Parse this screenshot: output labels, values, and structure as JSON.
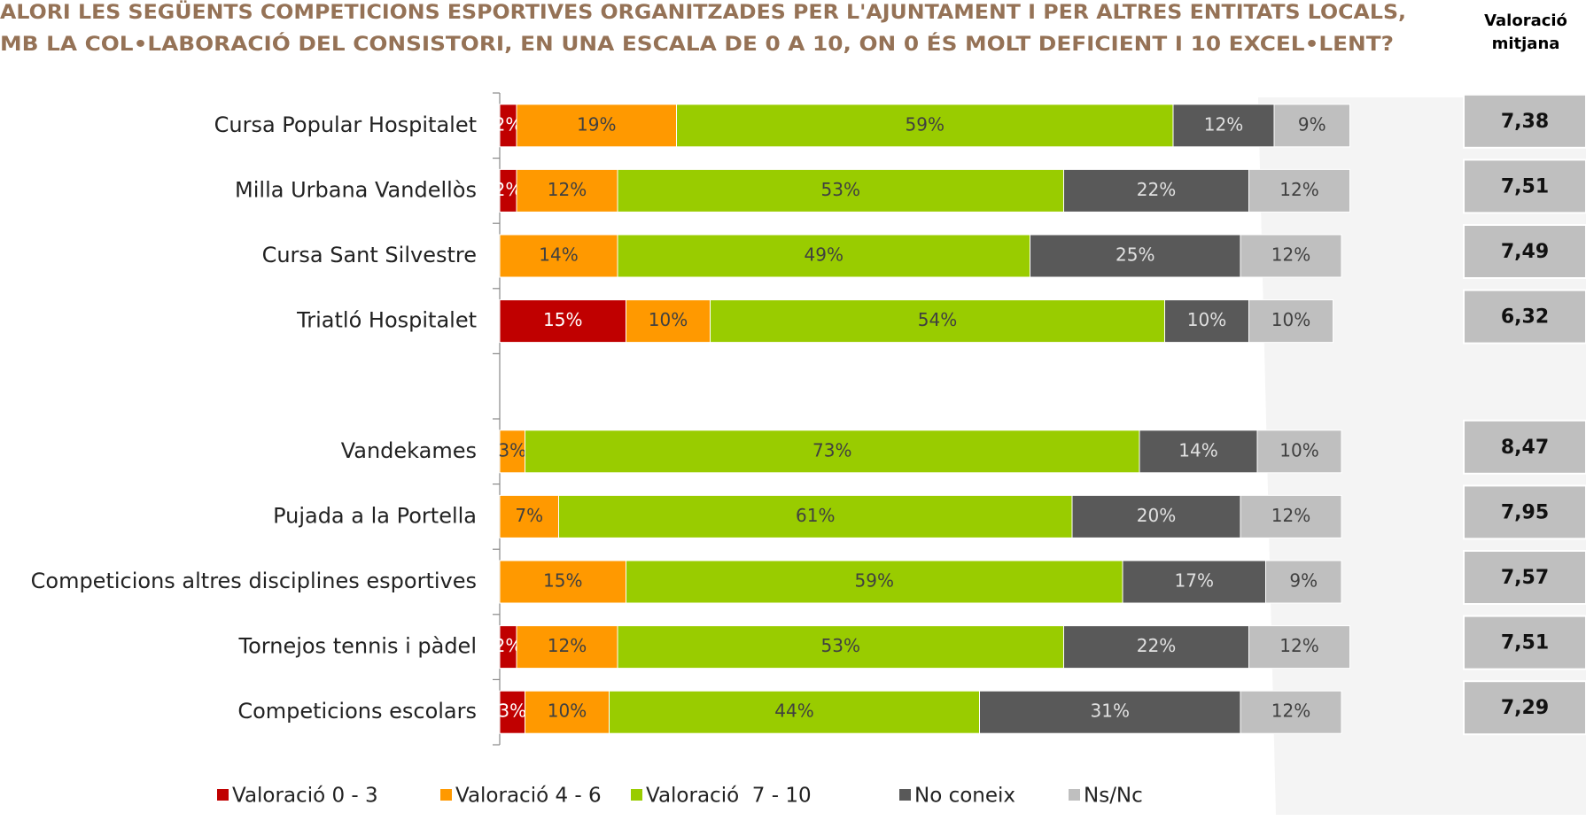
{
  "chart_data": {
    "type": "stacked_barh",
    "title": [
      "ALORI LES SEGÜENTS COMPETICIONS ESPORTIVES ORGANITZADES PER L'AJUNTAMENT I PER ALTRES ENTITATS LOCALS,",
      "MB LA COL•LABORACIÓ DEL CONSISTORI, EN UNA ESCALA DE 0 A 10, ON 0 ÉS MOLT DEFICIENT I 10 EXCEL•LENT?"
    ],
    "categories": [
      "Cursa Popular Hospitalet",
      "Milla Urbana Vandellòs",
      "Cursa Sant Silvestre",
      "Triatló Hospitalet",
      null,
      "Vandekames",
      "Pujada a la Portella",
      "Competicions altres disciplines esportives",
      "Tornejos tennis i pàdel",
      "Competicions escolars"
    ],
    "xlim": [
      0,
      100
    ],
    "series": [
      {
        "name": "Valoració 0 - 3",
        "color": "#c00000",
        "label_color": "#ffffff",
        "values": [
          2,
          2,
          null,
          15,
          null,
          null,
          null,
          null,
          2,
          3
        ],
        "value_labels": [
          "2%",
          "2%",
          null,
          "15%",
          null,
          null,
          null,
          null,
          "2%",
          "3%"
        ]
      },
      {
        "name": "Valoració 4 - 6",
        "color": "#ff9900",
        "label_color": "#404040",
        "values": [
          19,
          12,
          14,
          10,
          null,
          3,
          7,
          15,
          12,
          10
        ],
        "value_labels": [
          "19%",
          "12%",
          "14%",
          "10%",
          null,
          "3%",
          "7%",
          "15%",
          "12%",
          "10%"
        ]
      },
      {
        "name": "Valoració  7 - 10",
        "color": "#99cc00",
        "label_color": "#404040",
        "values": [
          59,
          53,
          49,
          54,
          null,
          73,
          61,
          59,
          53,
          44
        ],
        "value_labels": [
          "59%",
          "53%",
          "49%",
          "54%",
          null,
          "73%",
          "61%",
          "59%",
          "53%",
          "44%"
        ]
      },
      {
        "name": "No coneix",
        "color": "#595959",
        "label_color": "#e0e0e0",
        "values": [
          12,
          22,
          25,
          10,
          null,
          14,
          20,
          17,
          22,
          31
        ],
        "value_labels": [
          "12%",
          "22%",
          "25%",
          "10%",
          null,
          "14%",
          "20%",
          "17%",
          "22%",
          "31%"
        ]
      },
      {
        "name": "Ns/Nc",
        "color": "#bfbfbf",
        "label_color": "#404040",
        "values": [
          9,
          12,
          12,
          10,
          null,
          10,
          12,
          9,
          12,
          12
        ],
        "value_labels": [
          "9%",
          "12%",
          "12%",
          "10%",
          null,
          "10%",
          "12%",
          "9%",
          "12%",
          "12%"
        ]
      }
    ],
    "averages": {
      "title": [
        "Valoració",
        "mitjana"
      ],
      "color": "#bfbfbf",
      "values": [
        7.38,
        7.51,
        7.49,
        6.32,
        null,
        8.47,
        7.95,
        7.57,
        7.51,
        7.29
      ],
      "value_labels": [
        "7,38",
        "7,51",
        "7,49",
        "6,32",
        null,
        "8,47",
        "7,95",
        "7,57",
        "7,51",
        "7,29"
      ]
    },
    "legend": "bottom"
  }
}
